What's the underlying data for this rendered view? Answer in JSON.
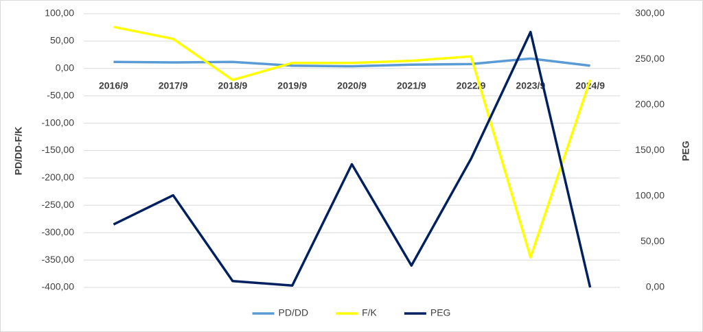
{
  "chart_data": {
    "type": "line",
    "categories": [
      "2016/9",
      "2017/9",
      "2018/9",
      "2019/9",
      "2020/9",
      "2021/9",
      "2022/9",
      "2023/9",
      "2024/9"
    ],
    "series": [
      {
        "name": "PD/DD",
        "color": "#5b9bd5",
        "values": [
          12,
          11,
          12,
          5,
          4,
          7,
          8,
          18,
          5
        ]
      },
      {
        "name": "F/K",
        "color": "#ffff00",
        "values": [
          76,
          54,
          -21,
          10,
          10,
          14,
          22,
          -345,
          -21
        ]
      },
      {
        "name": "PEG",
        "color": "#002060",
        "axis": "y2",
        "values": [
          69,
          101,
          7,
          2,
          135,
          24,
          141,
          280,
          0
        ]
      }
    ],
    "y_label": "PD/DD-F/K",
    "y2_label": "PEG",
    "ylim": [
      -400,
      100
    ],
    "yticks": [
      {
        "value": -400,
        "label": "-400,00"
      },
      {
        "value": -350,
        "label": "-350,00"
      },
      {
        "value": -300,
        "label": "-300,00"
      },
      {
        "value": -250,
        "label": "-250,00"
      },
      {
        "value": -200,
        "label": "-200,00"
      },
      {
        "value": -150,
        "label": "-150,00"
      },
      {
        "value": -100,
        "label": "-100,00"
      },
      {
        "value": -50,
        "label": "-50,00"
      },
      {
        "value": 0,
        "label": "0,00"
      },
      {
        "value": 50,
        "label": "50,00"
      },
      {
        "value": 100,
        "label": "100,00"
      }
    ],
    "y2lim": [
      0,
      300
    ],
    "y2ticks": [
      {
        "value": 0,
        "label": "0,00"
      },
      {
        "value": 50,
        "label": "50,00"
      },
      {
        "value": 100,
        "label": "100,00"
      },
      {
        "value": 150,
        "label": "150,00"
      },
      {
        "value": 200,
        "label": "200,00"
      },
      {
        "value": 250,
        "label": "250,00"
      },
      {
        "value": 300,
        "label": "300,00"
      }
    ],
    "grid": true,
    "legend": "bottom"
  }
}
